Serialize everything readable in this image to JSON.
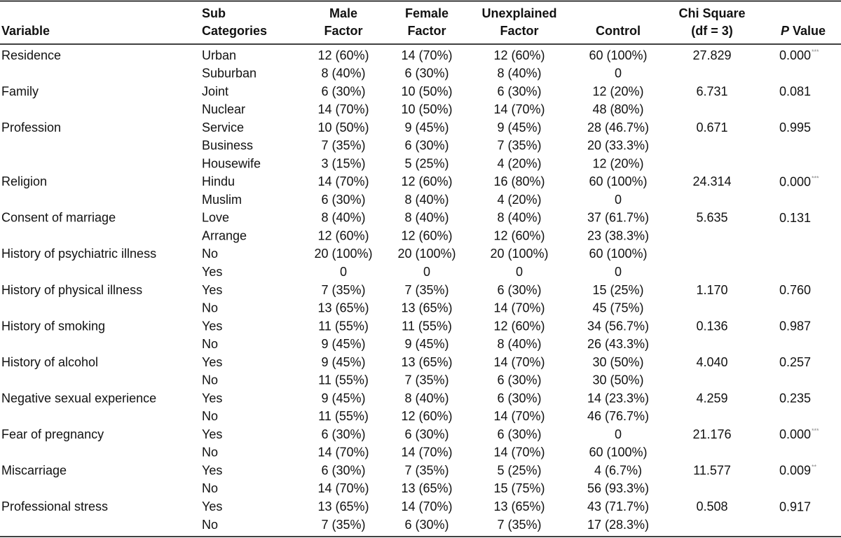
{
  "header": {
    "columns": [
      [
        "Variable"
      ],
      [
        "Sub",
        "Categories"
      ],
      [
        "Male",
        "Factor"
      ],
      [
        "Female",
        "Factor"
      ],
      [
        "Unexplained",
        "Factor"
      ],
      [
        "Control"
      ],
      [
        "Chi Square",
        "(df = 3)"
      ]
    ],
    "p_value": {
      "italic": "P",
      "rest": "Value"
    }
  },
  "groups": [
    {
      "variable": "Residence",
      "chi": "27.829",
      "p": "0.000",
      "p_note": "***",
      "subs": [
        {
          "name": "Urban",
          "values": [
            "12 (60%)",
            "14 (70%)",
            "12 (60%)",
            "60 (100%)"
          ]
        },
        {
          "name": "Suburban",
          "values": [
            "8 (40%)",
            "6 (30%)",
            "8 (40%)",
            "0"
          ]
        }
      ]
    },
    {
      "variable": "Family",
      "chi": "6.731",
      "p": "0.081",
      "subs": [
        {
          "name": "Joint",
          "values": [
            "6 (30%)",
            "10 (50%)",
            "6 (30%)",
            "12 (20%)"
          ]
        },
        {
          "name": "Nuclear",
          "values": [
            "14 (70%)",
            "10 (50%)",
            "14 (70%)",
            "48 (80%)"
          ]
        }
      ]
    },
    {
      "variable": "Profession",
      "chi": "0.671",
      "p": "0.995",
      "subs": [
        {
          "name": "Service",
          "values": [
            "10 (50%)",
            "9 (45%)",
            "9 (45%)",
            "28 (46.7%)"
          ]
        },
        {
          "name": "Business",
          "values": [
            "7 (35%)",
            "6 (30%)",
            "7 (35%)",
            "20 (33.3%)"
          ]
        },
        {
          "name": "Housewife",
          "values": [
            "3 (15%)",
            "5 (25%)",
            "4 (20%)",
            "12 (20%)"
          ]
        }
      ]
    },
    {
      "variable": "Religion",
      "chi": "24.314",
      "p": "0.000",
      "p_note": "***",
      "subs": [
        {
          "name": "Hindu",
          "values": [
            "14 (70%)",
            "12 (60%)",
            "16 (80%)",
            "60 (100%)"
          ]
        },
        {
          "name": "Muslim",
          "values": [
            "6 (30%)",
            "8 (40%)",
            "4 (20%)",
            "0"
          ]
        }
      ]
    },
    {
      "variable": "Consent of marriage",
      "chi": "5.635",
      "p": "0.131",
      "subs": [
        {
          "name": "Love",
          "values": [
            "8 (40%)",
            "8 (40%)",
            "8 (40%)",
            "37 (61.7%)"
          ]
        },
        {
          "name": "Arrange",
          "values": [
            "12 (60%)",
            "12 (60%)",
            "12 (60%)",
            "23 (38.3%)"
          ]
        }
      ]
    },
    {
      "variable": "History of psychiatric illness",
      "subs": [
        {
          "name": "No",
          "values": [
            "20 (100%)",
            "20 (100%)",
            "20 (100%)",
            "60 (100%)"
          ]
        },
        {
          "name": "Yes",
          "values": [
            "0",
            "0",
            "0",
            "0"
          ]
        }
      ]
    },
    {
      "variable": "History of physical illness",
      "chi": "1.170",
      "p": "0.760",
      "subs": [
        {
          "name": "Yes",
          "values": [
            "7 (35%)",
            "7 (35%)",
            "6 (30%)",
            "15 (25%)"
          ]
        },
        {
          "name": "No",
          "values": [
            "13 (65%)",
            "13 (65%)",
            "14 (70%)",
            "45 (75%)"
          ]
        }
      ]
    },
    {
      "variable": "History of smoking",
      "chi": "0.136",
      "p": "0.987",
      "subs": [
        {
          "name": "Yes",
          "values": [
            "11 (55%)",
            "11 (55%)",
            "12 (60%)",
            "34 (56.7%)"
          ]
        },
        {
          "name": "No",
          "values": [
            "9 (45%)",
            "9 (45%)",
            "8 (40%)",
            "26 (43.3%)"
          ]
        }
      ]
    },
    {
      "variable": "History of alcohol",
      "chi": "4.040",
      "p": "0.257",
      "subs": [
        {
          "name": "Yes",
          "values": [
            "9 (45%)",
            "13 (65%)",
            "14 (70%)",
            "30 (50%)"
          ]
        },
        {
          "name": "No",
          "values": [
            "11 (55%)",
            "7 (35%)",
            "6 (30%)",
            "30 (50%)"
          ]
        }
      ]
    },
    {
      "variable": "Negative sexual experience",
      "chi": "4.259",
      "p": "0.235",
      "subs": [
        {
          "name": "Yes",
          "values": [
            "9 (45%)",
            "8 (40%)",
            "6 (30%)",
            "14 (23.3%)"
          ]
        },
        {
          "name": "No",
          "values": [
            "11 (55%)",
            "12 (60%)",
            "14 (70%)",
            "46 (76.7%)"
          ]
        }
      ]
    },
    {
      "variable": "Fear of pregnancy",
      "chi": "21.176",
      "p": "0.000",
      "p_note": "***",
      "subs": [
        {
          "name": "Yes",
          "values": [
            "6 (30%)",
            "6 (30%)",
            "6 (30%)",
            "0"
          ]
        },
        {
          "name": "No",
          "values": [
            "14 (70%)",
            "14 (70%)",
            "14 (70%)",
            "60 (100%)"
          ]
        }
      ]
    },
    {
      "variable": "Miscarriage",
      "chi": "11.577",
      "p": "0.009",
      "p_note": "**",
      "subs": [
        {
          "name": "Yes",
          "values": [
            "6 (30%)",
            "7 (35%)",
            "5 (25%)",
            "4 (6.7%)"
          ]
        },
        {
          "name": "No",
          "values": [
            "14 (70%)",
            "13 (65%)",
            "15 (75%)",
            "56 (93.3%)"
          ]
        }
      ]
    },
    {
      "variable": "Professional stress",
      "chi": "0.508",
      "p": "0.917",
      "subs": [
        {
          "name": "Yes",
          "values": [
            "13 (65%)",
            "14 (70%)",
            "13 (65%)",
            "43 (71.7%)"
          ]
        },
        {
          "name": "No",
          "values": [
            "7 (35%)",
            "6 (30%)",
            "7 (35%)",
            "17 (28.3%)"
          ]
        }
      ]
    }
  ]
}
